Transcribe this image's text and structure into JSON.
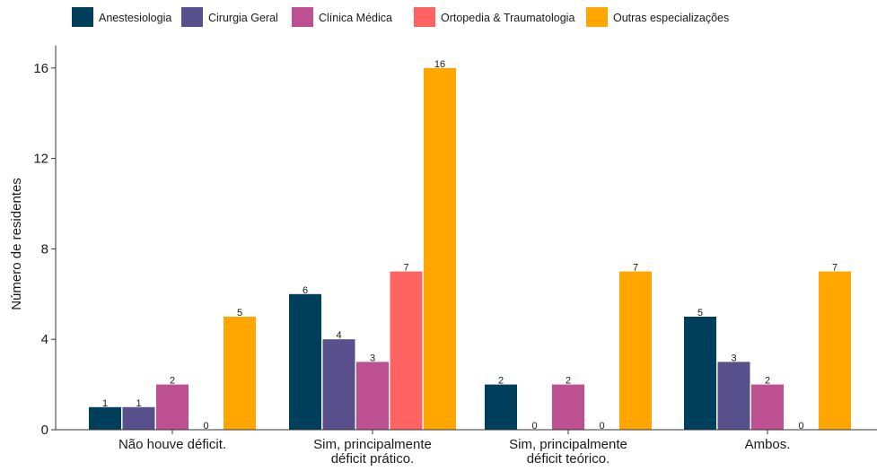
{
  "chart_data": {
    "type": "bar",
    "title": "",
    "xlabel": "",
    "ylabel": "Número de residentes",
    "ylim": [
      0,
      17
    ],
    "yticks": [
      0,
      4,
      8,
      12,
      16
    ],
    "grid": false,
    "legend_position": "top",
    "categories": [
      [
        "Não houve déficit."
      ],
      [
        "Sim, principalmente",
        "déficit prático."
      ],
      [
        "Sim, principalmente",
        "déficit teórico."
      ],
      [
        "Ambos."
      ]
    ],
    "series": [
      {
        "name": "Anestesiologia",
        "color": "#003f5c",
        "values": [
          1,
          6,
          2,
          5
        ]
      },
      {
        "name": "Cirurgia Geral",
        "color": "#58508d",
        "values": [
          1,
          4,
          0,
          3
        ]
      },
      {
        "name": "Clínica Médica",
        "color": "#bc5090",
        "values": [
          2,
          3,
          2,
          2
        ]
      },
      {
        "name": "Ortopedia & Traumatologia",
        "color": "#ff6361",
        "values": [
          0,
          7,
          0,
          0
        ]
      },
      {
        "name": "Outras especializações",
        "color": "#ffa600",
        "values": [
          5,
          16,
          7,
          7
        ]
      }
    ]
  }
}
